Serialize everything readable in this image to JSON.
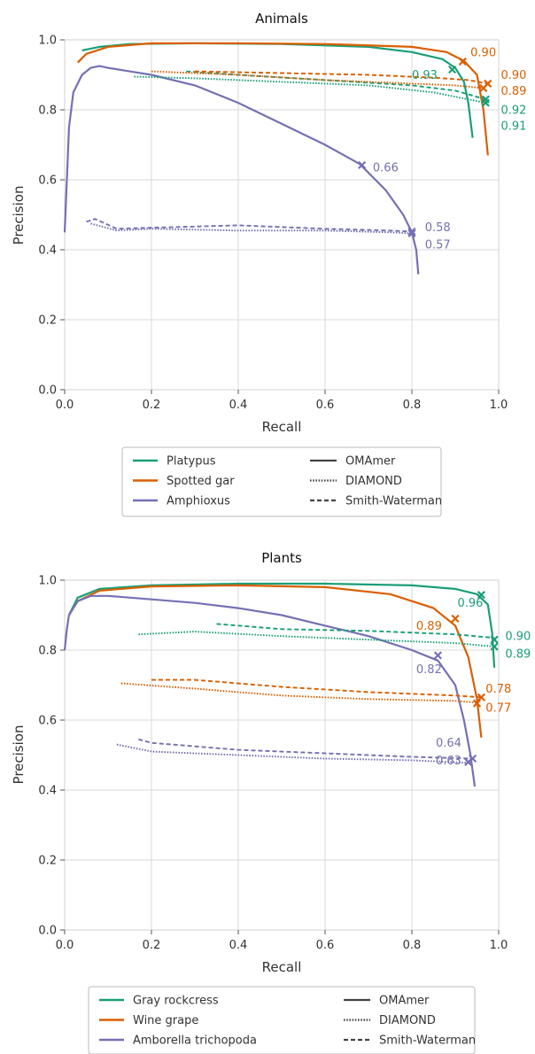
{
  "colors": {
    "green": "#1b9e77",
    "orange": "#d95f02",
    "purple": "#7570b3",
    "style_gray": "#444444"
  },
  "chart_data": [
    {
      "type": "line",
      "title": "Animals",
      "xlabel": "Recall",
      "ylabel": "Precision",
      "xlim": [
        0,
        1
      ],
      "ylim": [
        0,
        1
      ],
      "xticks": [
        "0.0",
        "0.2",
        "0.4",
        "0.6",
        "0.8",
        "1.0"
      ],
      "yticks": [
        "0.0",
        "0.2",
        "0.4",
        "0.6",
        "0.8",
        "1.0"
      ],
      "grid": true,
      "legend_placement": "bottom",
      "legend": {
        "species": [
          {
            "label": "Platypus",
            "color": "green"
          },
          {
            "label": "Spotted gar",
            "color": "orange"
          },
          {
            "label": "Amphioxus",
            "color": "purple"
          }
        ],
        "methods": [
          {
            "label": "OMAmer",
            "dash": "solid"
          },
          {
            "label": "DIAMOND",
            "dash": "dotted"
          },
          {
            "label": "Smith-Waterman",
            "dash": "dashed"
          }
        ]
      },
      "series": [
        {
          "species": "Platypus",
          "method": "OMAmer",
          "color": "green",
          "dash": "solid",
          "x": [
            0.04,
            0.08,
            0.15,
            0.3,
            0.5,
            0.7,
            0.8,
            0.87,
            0.9,
            0.92,
            0.93,
            0.94
          ],
          "y": [
            0.97,
            0.98,
            0.988,
            0.99,
            0.988,
            0.98,
            0.965,
            0.945,
            0.92,
            0.88,
            0.82,
            0.72
          ],
          "mark": {
            "x": 0.893,
            "y": 0.915,
            "label": "0.93"
          }
        },
        {
          "species": "Spotted gar",
          "method": "OMAmer",
          "color": "orange",
          "dash": "solid",
          "x": [
            0.03,
            0.05,
            0.1,
            0.2,
            0.4,
            0.6,
            0.8,
            0.88,
            0.92,
            0.95,
            0.965,
            0.975
          ],
          "y": [
            0.935,
            0.96,
            0.98,
            0.99,
            0.99,
            0.988,
            0.98,
            0.965,
            0.94,
            0.9,
            0.8,
            0.67
          ],
          "mark": {
            "x": 0.917,
            "y": 0.938,
            "label": "0.90"
          }
        },
        {
          "species": "Amphioxus",
          "method": "OMAmer",
          "color": "purple",
          "dash": "solid",
          "x": [
            0.0,
            0.005,
            0.01,
            0.02,
            0.04,
            0.06,
            0.08,
            0.1,
            0.15,
            0.2,
            0.3,
            0.4,
            0.5,
            0.6,
            0.68,
            0.74,
            0.78,
            0.8,
            0.81,
            0.815
          ],
          "y": [
            0.45,
            0.6,
            0.75,
            0.85,
            0.9,
            0.92,
            0.925,
            0.92,
            0.91,
            0.9,
            0.87,
            0.82,
            0.76,
            0.7,
            0.645,
            0.57,
            0.5,
            0.45,
            0.4,
            0.33
          ],
          "mark": {
            "x": 0.685,
            "y": 0.642,
            "label": "0.66"
          }
        },
        {
          "species": "Platypus",
          "method": "DIAMOND",
          "color": "green",
          "dash": "dotted",
          "x": [
            0.16,
            0.3,
            0.5,
            0.7,
            0.85,
            0.97
          ],
          "y": [
            0.895,
            0.89,
            0.88,
            0.87,
            0.85,
            0.82
          ],
          "mark": {
            "x": 0.97,
            "y": 0.82,
            "label": "0.91"
          }
        },
        {
          "species": "Platypus",
          "method": "Smith-Waterman",
          "color": "green",
          "dash": "dashed",
          "x": [
            0.28,
            0.4,
            0.6,
            0.8,
            0.9,
            0.97
          ],
          "y": [
            0.91,
            0.9,
            0.885,
            0.87,
            0.855,
            0.83
          ],
          "mark": {
            "x": 0.97,
            "y": 0.83,
            "label": "0.92"
          }
        },
        {
          "species": "Spotted gar",
          "method": "DIAMOND",
          "color": "orange",
          "dash": "dotted",
          "x": [
            0.2,
            0.4,
            0.6,
            0.8,
            0.9,
            0.965
          ],
          "y": [
            0.91,
            0.9,
            0.885,
            0.875,
            0.87,
            0.862
          ],
          "mark": {
            "x": 0.965,
            "y": 0.862,
            "label": "0.89"
          }
        },
        {
          "species": "Spotted gar",
          "method": "Smith-Waterman",
          "color": "orange",
          "dash": "dashed",
          "x": [
            0.3,
            0.5,
            0.7,
            0.85,
            0.93,
            0.975
          ],
          "y": [
            0.91,
            0.905,
            0.9,
            0.892,
            0.885,
            0.875
          ],
          "mark": {
            "x": 0.975,
            "y": 0.875,
            "label": "0.90"
          }
        },
        {
          "species": "Amphioxus",
          "method": "DIAMOND",
          "color": "purple",
          "dash": "dotted",
          "x": [
            0.06,
            0.12,
            0.2,
            0.4,
            0.6,
            0.75,
            0.8
          ],
          "y": [
            0.475,
            0.455,
            0.46,
            0.455,
            0.455,
            0.45,
            0.447
          ],
          "mark": {
            "x": 0.8,
            "y": 0.447,
            "label": "0.57"
          }
        },
        {
          "species": "Amphioxus",
          "method": "Smith-Waterman",
          "color": "purple",
          "dash": "dashed",
          "x": [
            0.05,
            0.07,
            0.12,
            0.2,
            0.4,
            0.6,
            0.75,
            0.8
          ],
          "y": [
            0.48,
            0.488,
            0.46,
            0.463,
            0.47,
            0.46,
            0.455,
            0.452
          ],
          "mark": {
            "x": 0.8,
            "y": 0.452,
            "label": "0.58"
          }
        }
      ],
      "annotations": [
        {
          "text": "0.90",
          "color": "orange",
          "x": 0.935,
          "y": 0.965
        },
        {
          "text": "0.90",
          "color": "orange",
          "x": 1.005,
          "y": 0.9
        },
        {
          "text": "0.93",
          "color": "green",
          "x": 0.8,
          "y": 0.9
        },
        {
          "text": "0.89",
          "color": "orange",
          "x": 1.005,
          "y": 0.855
        },
        {
          "text": "0.92",
          "color": "green",
          "x": 1.005,
          "y": 0.8
        },
        {
          "text": "0.91",
          "color": "green",
          "x": 1.005,
          "y": 0.755
        },
        {
          "text": "0.66",
          "color": "purple",
          "x": 0.71,
          "y": 0.635
        },
        {
          "text": "0.58",
          "color": "purple",
          "x": 0.83,
          "y": 0.465
        },
        {
          "text": "0.57",
          "color": "purple",
          "x": 0.83,
          "y": 0.415
        }
      ]
    },
    {
      "type": "line",
      "title": "Plants",
      "xlabel": "Recall",
      "ylabel": "Precision",
      "xlim": [
        0,
        1
      ],
      "ylim": [
        0,
        1
      ],
      "xticks": [
        "0.0",
        "0.2",
        "0.4",
        "0.6",
        "0.8",
        "1.0"
      ],
      "yticks": [
        "0.0",
        "0.2",
        "0.4",
        "0.6",
        "0.8",
        "1.0"
      ],
      "grid": true,
      "legend_placement": "bottom",
      "legend": {
        "species": [
          {
            "label": "Gray rockcress",
            "color": "green"
          },
          {
            "label": "Wine grape",
            "color": "orange"
          },
          {
            "label": "Amborella trichopoda",
            "color": "purple"
          }
        ],
        "methods": [
          {
            "label": "OMAmer",
            "dash": "solid"
          },
          {
            "label": "DIAMOND",
            "dash": "dotted"
          },
          {
            "label": "Smith-Waterman",
            "dash": "dashed"
          }
        ]
      },
      "series": [
        {
          "species": "Gray rockcress",
          "method": "OMAmer",
          "color": "green",
          "dash": "solid",
          "x": [
            0.01,
            0.03,
            0.08,
            0.2,
            0.4,
            0.6,
            0.8,
            0.9,
            0.95,
            0.975,
            0.985,
            0.99
          ],
          "y": [
            0.9,
            0.95,
            0.975,
            0.985,
            0.99,
            0.99,
            0.985,
            0.975,
            0.96,
            0.93,
            0.85,
            0.75
          ],
          "mark": {
            "x": 0.96,
            "y": 0.958,
            "label": "0.96"
          }
        },
        {
          "species": "Wine grape",
          "method": "OMAmer",
          "color": "orange",
          "dash": "solid",
          "x": [
            0.01,
            0.03,
            0.08,
            0.2,
            0.4,
            0.6,
            0.75,
            0.85,
            0.9,
            0.93,
            0.95,
            0.96
          ],
          "y": [
            0.9,
            0.94,
            0.97,
            0.982,
            0.985,
            0.98,
            0.96,
            0.92,
            0.87,
            0.78,
            0.66,
            0.55
          ],
          "mark": {
            "x": 0.9,
            "y": 0.89,
            "label": "0.89"
          }
        },
        {
          "species": "Amborella trichopoda",
          "method": "OMAmer",
          "color": "purple",
          "dash": "solid",
          "x": [
            0.0,
            0.005,
            0.01,
            0.03,
            0.06,
            0.1,
            0.2,
            0.3,
            0.4,
            0.5,
            0.6,
            0.7,
            0.8,
            0.86,
            0.9,
            0.92,
            0.935,
            0.945
          ],
          "y": [
            0.8,
            0.86,
            0.9,
            0.94,
            0.955,
            0.955,
            0.945,
            0.935,
            0.92,
            0.9,
            0.87,
            0.84,
            0.8,
            0.77,
            0.7,
            0.6,
            0.5,
            0.41
          ],
          "mark": {
            "x": 0.86,
            "y": 0.785,
            "label": "0.82"
          }
        },
        {
          "species": "Gray rockcress",
          "method": "DIAMOND",
          "color": "green",
          "dash": "dotted",
          "x": [
            0.17,
            0.3,
            0.5,
            0.7,
            0.9,
            0.99
          ],
          "y": [
            0.845,
            0.853,
            0.84,
            0.83,
            0.82,
            0.81
          ],
          "mark": {
            "x": 0.99,
            "y": 0.81,
            "label": "0.89"
          }
        },
        {
          "species": "Gray rockcress",
          "method": "Smith-Waterman",
          "color": "green",
          "dash": "dashed",
          "x": [
            0.35,
            0.5,
            0.7,
            0.9,
            0.99
          ],
          "y": [
            0.875,
            0.86,
            0.855,
            0.845,
            0.835
          ],
          "mark": {
            "x": 0.99,
            "y": 0.83,
            "label": "0.90"
          }
        },
        {
          "species": "Wine grape",
          "method": "DIAMOND",
          "color": "orange",
          "dash": "dotted",
          "x": [
            0.13,
            0.3,
            0.5,
            0.7,
            0.9,
            0.95
          ],
          "y": [
            0.705,
            0.69,
            0.67,
            0.66,
            0.655,
            0.65
          ],
          "mark": {
            "x": 0.95,
            "y": 0.648,
            "label": "0.77"
          }
        },
        {
          "species": "Wine grape",
          "method": "Smith-Waterman",
          "color": "orange",
          "dash": "dashed",
          "x": [
            0.2,
            0.3,
            0.5,
            0.7,
            0.9,
            0.96
          ],
          "y": [
            0.715,
            0.715,
            0.695,
            0.68,
            0.67,
            0.665
          ],
          "mark": {
            "x": 0.96,
            "y": 0.665,
            "label": "0.78"
          }
        },
        {
          "species": "Amborella trichopoda",
          "method": "DIAMOND",
          "color": "purple",
          "dash": "dotted",
          "x": [
            0.12,
            0.2,
            0.4,
            0.6,
            0.8,
            0.93
          ],
          "y": [
            0.53,
            0.51,
            0.5,
            0.49,
            0.485,
            0.478
          ],
          "mark": {
            "x": 0.93,
            "y": 0.48,
            "label": "0.63"
          }
        },
        {
          "species": "Amborella trichopoda",
          "method": "Smith-Waterman",
          "color": "purple",
          "dash": "dashed",
          "x": [
            0.17,
            0.2,
            0.4,
            0.6,
            0.8,
            0.94
          ],
          "y": [
            0.545,
            0.535,
            0.515,
            0.505,
            0.495,
            0.49
          ],
          "mark": {
            "x": 0.94,
            "y": 0.49,
            "label": "0.64"
          }
        }
      ],
      "annotations": [
        {
          "text": "0.96",
          "color": "green",
          "x": 0.905,
          "y": 0.935
        },
        {
          "text": "0.89",
          "color": "orange",
          "x": 0.81,
          "y": 0.87
        },
        {
          "text": "0.90",
          "color": "green",
          "x": 1.015,
          "y": 0.84
        },
        {
          "text": "0.89",
          "color": "green",
          "x": 1.015,
          "y": 0.79
        },
        {
          "text": "0.82",
          "color": "purple",
          "x": 0.81,
          "y": 0.745
        },
        {
          "text": "0.78",
          "color": "orange",
          "x": 0.97,
          "y": 0.69
        },
        {
          "text": "0.77",
          "color": "orange",
          "x": 0.97,
          "y": 0.635
        },
        {
          "text": "0.64",
          "color": "purple",
          "x": 0.855,
          "y": 0.535
        },
        {
          "text": "0.63",
          "color": "purple",
          "x": 0.855,
          "y": 0.485
        }
      ]
    }
  ]
}
